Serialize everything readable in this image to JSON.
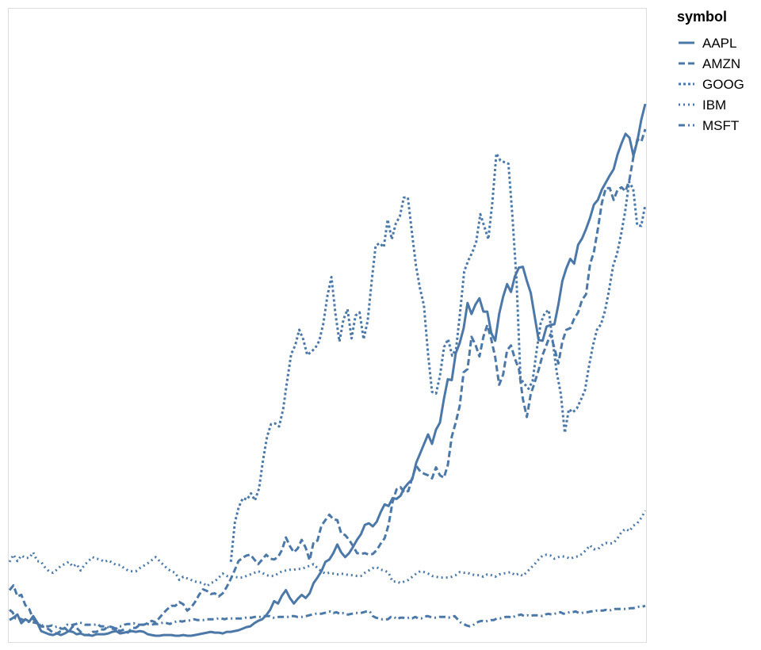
{
  "chart_data": {
    "type": "line",
    "title": "",
    "xlabel": "",
    "ylabel": "",
    "x_start": "2000-01",
    "x_step": "month",
    "ylim": [
      0,
      800
    ],
    "grid": false,
    "axes_visible": false,
    "legend": {
      "title": "symbol",
      "placement": "top-right"
    },
    "line_color": "#4c78a8",
    "series": [
      {
        "name": "AAPL",
        "dash": "solid",
        "values": [
          26,
          29,
          33,
          22,
          27,
          24,
          31,
          23,
          12,
          10,
          8,
          7,
          9,
          7,
          9,
          12,
          11,
          8,
          9,
          7,
          7,
          6,
          8,
          8,
          8,
          9,
          11,
          12,
          9,
          10,
          11,
          12,
          11,
          12,
          11,
          8,
          7,
          6,
          6,
          7,
          7,
          7,
          6,
          6,
          7,
          6,
          6,
          7,
          8,
          9,
          10,
          11,
          10,
          10,
          9,
          11,
          11,
          12,
          13,
          15,
          17,
          18,
          22,
          25,
          27,
          32,
          39,
          50,
          47,
          57,
          64,
          54,
          47,
          53,
          58,
          54,
          60,
          73,
          80,
          88,
          100,
          103,
          111,
          122,
          112,
          106,
          111,
          119,
          128,
          135,
          147,
          149,
          145,
          151,
          163,
          173,
          171,
          181,
          180,
          184,
          194,
          200,
          205,
          226,
          238,
          250,
          262,
          250,
          268,
          277,
          307,
          332,
          331,
          365,
          378,
          397,
          429,
          415,
          427,
          435,
          418,
          418,
          391,
          381,
          415,
          437,
          453,
          443,
          463,
          474,
          475,
          457,
          442,
          412,
          382,
          381,
          399,
          401,
          402,
          427,
          457,
          473,
          485,
          479,
          503,
          511,
          523,
          537,
          554,
          560,
          573,
          582,
          591,
          599,
          618,
          632,
          644,
          639,
          616,
          635,
          662,
          682
        ]
      },
      {
        "name": "AMZN",
        "dash": "8,4",
        "values": [
          64,
          70,
          56,
          58,
          45,
          40,
          27,
          23,
          18,
          17,
          14,
          10,
          9,
          12,
          16,
          11,
          18,
          16,
          11,
          7,
          7,
          11,
          11,
          14,
          14,
          18,
          17,
          15,
          12,
          14,
          10,
          16,
          16,
          20,
          20,
          22,
          25,
          23,
          29,
          35,
          40,
          44,
          44,
          49,
          46,
          38,
          42,
          49,
          58,
          65,
          63,
          59,
          60,
          56,
          60,
          68,
          78,
          89,
          101,
          105,
          108,
          109,
          103,
          97,
          103,
          109,
          104,
          103,
          106,
          115,
          131,
          120,
          112,
          117,
          128,
          118,
          102,
          125,
          127,
          146,
          153,
          160,
          154,
          153,
          136,
          134,
          128,
          120,
          111,
          110,
          111,
          109,
          110,
          115,
          123,
          130,
          147,
          176,
          192,
          195,
          188,
          190,
          207,
          222,
          215,
          212,
          210,
          206,
          220,
          210,
          207,
          223,
          259,
          277,
          298,
          341,
          345,
          386,
          376,
          361,
          386,
          401,
          383,
          360,
          325,
          338,
          369,
          375,
          358,
          345,
          307,
          284,
          313,
          328,
          344,
          363,
          376,
          389,
          372,
          352,
          380,
          395,
          397,
          409,
          417,
          433,
          440,
          478,
          494,
          523,
          556,
          575,
          575,
          560,
          573,
          576,
          571,
          586,
          615,
          637,
          634,
          650
        ]
      },
      {
        "name": "GOOG",
        "dash": "3,3",
        "values": [
          null,
          null,
          null,
          null,
          null,
          null,
          null,
          null,
          null,
          null,
          null,
          null,
          null,
          null,
          null,
          null,
          null,
          null,
          null,
          null,
          null,
          null,
          null,
          null,
          null,
          null,
          null,
          null,
          null,
          null,
          null,
          null,
          null,
          null,
          null,
          null,
          null,
          null,
          null,
          null,
          null,
          null,
          null,
          null,
          null,
          null,
          null,
          null,
          null,
          null,
          null,
          null,
          null,
          null,
          null,
          null,
          null,
          null,
          null,
          null,
          null,
          null,
          null,
          null,
          null,
          null,
          null,
          null,
          null,
          null,
          null,
          null,
          null,
          null,
          null,
          null,
          null,
          null,
          null,
          null,
          null,
          null,
          null,
          null,
          null,
          null,
          null,
          null,
          null,
          null,
          null,
          null,
          null,
          null,
          null,
          null,
          null,
          null,
          null,
          null,
          null,
          null,
          null,
          null,
          null,
          null,
          null,
          null,
          null,
          null,
          null,
          null,
          null,
          null,
          null,
          null,
          null,
          null,
          null,
          null,
          null,
          null,
          null,
          null,
          null,
          null,
          null,
          null,
          null,
          null,
          null,
          null,
          null,
          null,
          null,
          null,
          null,
          null,
          null,
          null,
          null,
          null,
          null,
          null,
          null,
          null,
          null,
          null,
          null,
          null,
          null,
          null,
          null,
          null,
          null,
          null,
          null,
          null,
          null,
          null,
          null,
          null
        ],
        "values_from_index": 55,
        "values_tail": [
          100,
          150,
          170,
          181,
          179,
          187,
          178,
          193,
          229,
          259,
          275,
          276,
          272,
          294,
          330,
          364,
          375,
          395,
          383,
          363,
          367,
          372,
          381,
          403,
          438,
          462,
          415,
          380,
          408,
          421,
          384,
          413,
          417,
          383,
          406,
          456,
          502,
          505,
          500,
          535,
          510,
          530,
          539,
          563,
          563,
          519,
          477,
          448,
          426,
          365,
          316,
          314,
          337,
          373,
          383,
          362,
          371,
          418,
          469,
          483,
          493,
          507,
          542,
          526,
          510,
          557,
          619,
          610,
          608,
          606,
          538,
          458,
          333,
          326,
          320,
          330,
          368,
          403,
          416,
          420,
          380,
          341,
          314,
          264,
          294,
          290,
          295,
          306,
          318,
          348,
          375,
          395,
          402,
          419,
          445,
          476,
          492,
          516,
          545,
          583,
          574,
          528,
          527,
          554
        ]
      },
      {
        "name": "IBM",
        "dash": "2,4",
        "values": [
          100,
          109,
          101,
          108,
          105,
          105,
          112,
          101,
          100,
          93,
          88,
          86,
          90,
          95,
          97,
          100,
          94,
          97,
          89,
          96,
          101,
          106,
          104,
          103,
          100,
          102,
          99,
          96,
          96,
          92,
          89,
          88,
          88,
          92,
          95,
          98,
          102,
          106,
          101,
          96,
          91,
          88,
          86,
          77,
          81,
          79,
          77,
          75,
          74,
          73,
          69,
          73,
          75,
          80,
          85,
          82,
          81,
          81,
          80,
          80,
          82,
          84,
          86,
          88,
          86,
          83,
          82,
          82,
          85,
          88,
          89,
          90,
          90,
          91,
          91,
          93,
          95,
          97,
          92,
          88,
          85,
          86,
          85,
          84,
          85,
          84,
          83,
          83,
          82,
          82,
          86,
          89,
          92,
          93,
          90,
          89,
          86,
          75,
          75,
          73,
          75,
          77,
          81,
          85,
          88,
          87,
          85,
          82,
          81,
          80,
          80,
          80,
          81,
          83,
          87,
          86,
          86,
          84,
          83,
          83,
          81,
          84,
          83,
          81,
          84,
          85,
          86,
          87,
          83,
          85,
          82,
          87,
          92,
          97,
          103,
          108,
          109,
          108,
          104,
          106,
          107,
          106,
          104,
          106,
          107,
          110,
          115,
          121,
          116,
          116,
          121,
          124,
          123,
          124,
          130,
          138,
          142,
          139,
          146,
          149,
          156,
          165
        ]
      },
      {
        "name": "MSFT",
        "dash": "8,4,2,4",
        "values": [
          39,
          36,
          28,
          28,
          27,
          25,
          24,
          23,
          23,
          22,
          21,
          19,
          18,
          18,
          19,
          17,
          18,
          15,
          15,
          20,
          19,
          20,
          21,
          23,
          22,
          20,
          20,
          20,
          20,
          21,
          18,
          18,
          18,
          16,
          15,
          14,
          18,
          18,
          20,
          21,
          21,
          22,
          20,
          20,
          20,
          20,
          21,
          20,
          21,
          21,
          22,
          23,
          22,
          21,
          23,
          24,
          25,
          24,
          25,
          25,
          26,
          27,
          26,
          26,
          26,
          27,
          27,
          27,
          27,
          28,
          28,
          27,
          28,
          28,
          28,
          28,
          28,
          28,
          29,
          29,
          29,
          30,
          30,
          30,
          31,
          31,
          31,
          29,
          29,
          30,
          30,
          30,
          30,
          31,
          31,
          30,
          30,
          30,
          31,
          32,
          33,
          34,
          34,
          34,
          35,
          36,
          37,
          35,
          36,
          34,
          35,
          33,
          33,
          34,
          35,
          35,
          35,
          36,
          37,
          37,
          31,
          29,
          28,
          27,
          27,
          27,
          30,
          30,
          27,
          29,
          29,
          28,
          29,
          28,
          30,
          28,
          28,
          30,
          31,
          30,
          29,
          29,
          30,
          30,
          30,
          29,
          30,
          31,
          27,
          23,
          21,
          19,
          18,
          19,
          22,
          24,
          25,
          24,
          25,
          26,
          26,
          28,
          28,
          29,
          30,
          30,
          29,
          31,
          32,
          33,
          31,
          32,
          31,
          32,
          32,
          32,
          31,
          33,
          34,
          33,
          34,
          35,
          36,
          34,
          35,
          36,
          36,
          37,
          35,
          35,
          36,
          36,
          37,
          37,
          38,
          38,
          38,
          39,
          38,
          39,
          40,
          40,
          40,
          40,
          40,
          41,
          41,
          42,
          43,
          43,
          44
        ]
      }
    ]
  }
}
